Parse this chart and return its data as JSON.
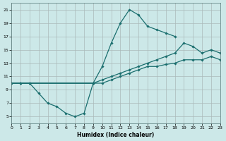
{
  "xlabel": "Humidex (Indice chaleur)",
  "xlim": [
    0,
    23
  ],
  "ylim": [
    4,
    22
  ],
  "xticks": [
    0,
    1,
    2,
    3,
    4,
    5,
    6,
    7,
    8,
    9,
    10,
    11,
    12,
    13,
    14,
    15,
    16,
    17,
    18,
    19,
    20,
    21,
    22,
    23
  ],
  "yticks": [
    5,
    7,
    9,
    11,
    13,
    15,
    17,
    19,
    21
  ],
  "bg_color": "#cce8e8",
  "grid_color": "#aababa",
  "line_color": "#1a6e6e",
  "curve_dip_x": [
    0,
    1,
    2,
    3,
    4,
    5,
    6,
    7,
    8,
    9
  ],
  "curve_dip_y": [
    10,
    10,
    10,
    8.5,
    7,
    6.5,
    5.5,
    5,
    5.5,
    10
  ],
  "curve_peak_x": [
    0,
    1,
    2,
    9,
    10,
    11,
    12,
    13,
    14,
    15,
    16,
    17,
    18
  ],
  "curve_peak_y": [
    10,
    10,
    10,
    10,
    12.5,
    16,
    19,
    21,
    20.2,
    18.5,
    18,
    17.5,
    17
  ],
  "curve_upper_x": [
    0,
    1,
    2,
    9,
    10,
    11,
    12,
    13,
    14,
    15,
    16,
    17,
    18,
    19,
    20,
    21,
    22,
    23
  ],
  "curve_upper_y": [
    10,
    10,
    10,
    10,
    10.5,
    11,
    11.5,
    12,
    12.5,
    13,
    13.5,
    14,
    14.5,
    16,
    15.5,
    14.5,
    15,
    14.5
  ],
  "curve_lower_x": [
    0,
    1,
    2,
    9,
    10,
    11,
    12,
    13,
    14,
    15,
    16,
    17,
    18,
    19,
    20,
    21,
    22,
    23
  ],
  "curve_lower_y": [
    10,
    10,
    10,
    10,
    10,
    10.5,
    11,
    11.5,
    12,
    12.5,
    12.5,
    12.8,
    13,
    13.5,
    13.5,
    13.5,
    14,
    13.5
  ]
}
